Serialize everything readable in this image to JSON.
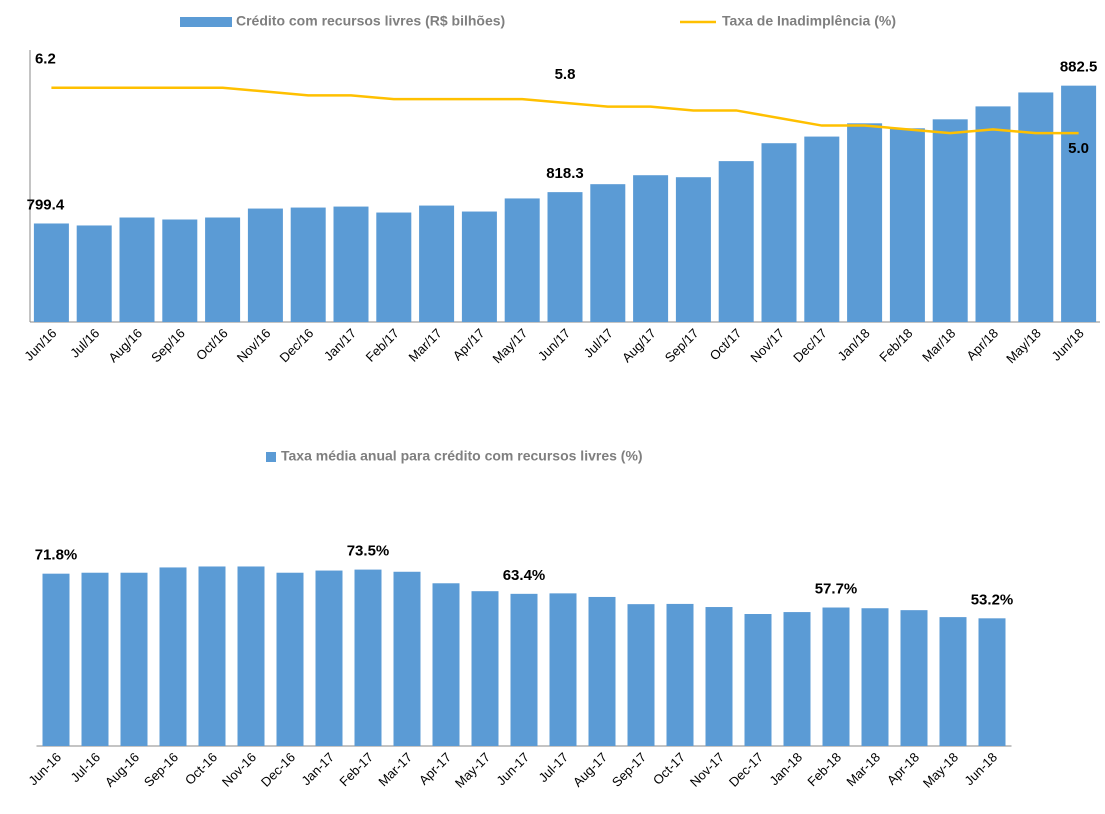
{
  "chart_data": [
    {
      "type": "bar-line",
      "categories": [
        "Jun/16",
        "Jul/16",
        "Aug/16",
        "Sep/16",
        "Oct/16",
        "Nov/16",
        "Dec/16",
        "Jan/17",
        "Feb/17",
        "Mar/17",
        "Apr/17",
        "May/17",
        "Jun/17",
        "Jul/17",
        "Aug/17",
        "Sep/17",
        "Oct/17",
        "Nov/17",
        "Dec/17",
        "Jan/18",
        "Feb/18",
        "Mar/18",
        "Apr/18",
        "May/18",
        "Jun/18"
      ],
      "series": [
        {
          "name": "Crédito com recursos livres (R$ bilhões)",
          "type": "bar",
          "color": "#5b9bd5",
          "values": [
            799.4,
            798.2,
            803.0,
            801.8,
            803.0,
            808.4,
            809.0,
            809.6,
            806.0,
            810.2,
            806.6,
            814.5,
            818.3,
            823.1,
            828.5,
            827.3,
            837.0,
            847.8,
            851.8,
            859.8,
            856.8,
            862.2,
            870.0,
            878.4,
            882.5
          ],
          "value_labels": [
            "799.4",
            null,
            null,
            null,
            null,
            null,
            null,
            null,
            null,
            null,
            null,
            null,
            "818.3",
            null,
            null,
            null,
            null,
            null,
            null,
            null,
            null,
            null,
            null,
            null,
            "882.5"
          ]
        },
        {
          "name": "Taxa de Inadimplência (%)",
          "type": "line",
          "axis": "y2",
          "color": "#ffc000",
          "values": [
            6.2,
            6.2,
            6.2,
            6.2,
            6.2,
            6.1,
            6.0,
            6.0,
            5.9,
            5.9,
            5.9,
            5.9,
            5.8,
            5.7,
            5.7,
            5.6,
            5.6,
            5.4,
            5.2,
            5.2,
            5.1,
            5.0,
            5.1,
            5.0,
            5.0
          ],
          "value_labels": [
            "6.2",
            null,
            null,
            null,
            null,
            null,
            null,
            null,
            null,
            null,
            null,
            null,
            "5.8",
            null,
            null,
            null,
            null,
            null,
            null,
            null,
            null,
            null,
            null,
            null,
            "5.0"
          ]
        }
      ],
      "ylim": [
        740,
        904
      ],
      "y2lim": [
        0,
        7.2
      ]
    },
    {
      "type": "bar",
      "categories": [
        "Jun-16",
        "Jul-16",
        "Aug-16",
        "Sep-16",
        "Oct-16",
        "Nov-16",
        "Dec-16",
        "Jan-17",
        "Feb-17",
        "Mar-17",
        "Apr-17",
        "May-17",
        "Jun-17",
        "Jul-17",
        "Aug-17",
        "Sep-17",
        "Oct-17",
        "Nov-17",
        "Dec-17",
        "Jan-18",
        "Feb-18",
        "Mar-18",
        "Apr-18",
        "May-18",
        "Jun-18"
      ],
      "series": [
        {
          "name": "Taxa média anual para crédito com recursos livres (%)",
          "color": "#5b9bd5",
          "values": [
            71.8,
            72.2,
            72.2,
            74.4,
            74.8,
            74.8,
            72.2,
            73.1,
            73.5,
            72.6,
            67.8,
            64.5,
            63.4,
            63.6,
            62.1,
            59.1,
            59.2,
            57.9,
            55.0,
            55.8,
            57.7,
            57.4,
            56.6,
            53.7,
            53.2
          ],
          "value_labels": [
            "71.8%",
            null,
            null,
            null,
            null,
            null,
            null,
            null,
            "73.5%",
            null,
            null,
            null,
            "63.4%",
            null,
            null,
            null,
            null,
            null,
            null,
            null,
            "57.7%",
            null,
            null,
            null,
            "53.2%"
          ]
        }
      ],
      "ylim": [
        0,
        95
      ]
    }
  ]
}
